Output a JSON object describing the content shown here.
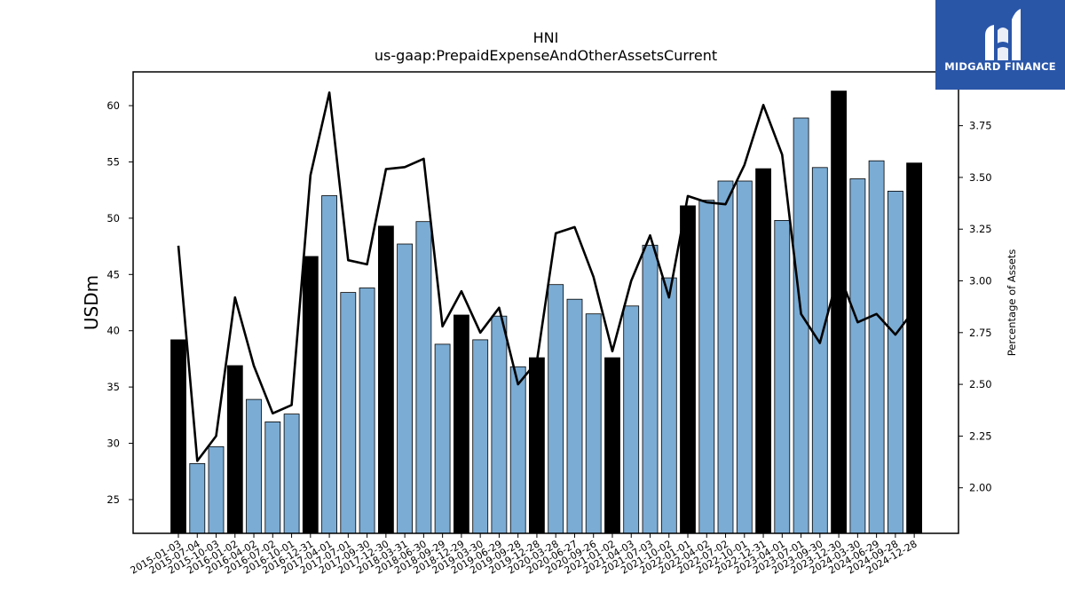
{
  "chart_data": {
    "type": "bar",
    "title": "HNI",
    "subtitle": "us-gaap:PrepaidExpenseAndOtherAssetsCurrent",
    "ylabel": "USDm",
    "y2label": "Percentage of Assets",
    "ylim": [
      22,
      63
    ],
    "y2lim": [
      1.78,
      4.01
    ],
    "yticks": [
      25,
      30,
      35,
      40,
      45,
      50,
      55,
      60
    ],
    "y2ticks": [
      "2.00",
      "2.25",
      "2.50",
      "2.75",
      "3.00",
      "3.25",
      "3.50",
      "3.75"
    ],
    "categories": [
      "2015-01-03",
      "2015-07-04",
      "2015-10-03",
      "2016-01-02",
      "2016-04-02",
      "2016-07-02",
      "2016-10-01",
      "2016-12-31",
      "2017-04-01",
      "2017-07-01",
      "2017-09-30",
      "2017-12-30",
      "2018-03-31",
      "2018-06-30",
      "2018-09-29",
      "2018-12-29",
      "2019-03-30",
      "2019-06-29",
      "2019-09-28",
      "2019-12-28",
      "2020-03-28",
      "2020-06-27",
      "2020-09-26",
      "2021-01-02",
      "2021-04-03",
      "2021-07-03",
      "2021-10-02",
      "2022-01-01",
      "2022-04-02",
      "2022-07-02",
      "2022-10-01",
      "2022-12-31",
      "2023-04-01",
      "2023-07-01",
      "2023-09-30",
      "2023-12-30",
      "2024-03-30",
      "2024-06-29",
      "2024-09-28",
      "2024-12-28"
    ],
    "series": [
      {
        "type": "bar",
        "values": [
          39.2,
          28.2,
          29.7,
          36.9,
          33.9,
          31.9,
          32.6,
          46.6,
          52.0,
          43.4,
          43.8,
          49.3,
          47.7,
          49.7,
          38.8,
          41.4,
          39.2,
          41.3,
          36.8,
          37.6,
          44.1,
          42.8,
          41.5,
          37.6,
          42.2,
          47.6,
          44.7,
          51.1,
          51.6,
          53.3,
          53.3,
          54.4,
          49.8,
          58.9,
          54.5,
          61.3,
          53.5,
          55.1,
          52.4,
          54.9
        ],
        "highlight": [
          true,
          false,
          false,
          true,
          false,
          false,
          false,
          true,
          false,
          false,
          false,
          true,
          false,
          false,
          false,
          true,
          false,
          false,
          false,
          true,
          false,
          false,
          false,
          true,
          false,
          false,
          false,
          true,
          false,
          false,
          false,
          true,
          false,
          false,
          false,
          true,
          false,
          false,
          false,
          true
        ]
      },
      {
        "type": "line",
        "axis": "right",
        "values": [
          3.17,
          2.13,
          2.25,
          2.92,
          2.59,
          2.36,
          2.4,
          3.51,
          3.91,
          3.1,
          3.08,
          3.54,
          3.55,
          3.59,
          2.78,
          2.95,
          2.75,
          2.87,
          2.5,
          2.61,
          3.23,
          3.26,
          3.02,
          2.66,
          3.0,
          3.22,
          2.92,
          3.41,
          3.38,
          3.37,
          3.56,
          3.85,
          3.61,
          2.84,
          2.7,
          3.04,
          2.8,
          2.84,
          2.74,
          2.86
        ]
      }
    ],
    "colors": {
      "bar": "#7bacd4",
      "bar_highlight": "#000000",
      "line": "#000000"
    }
  },
  "logo": {
    "text": "MIDGARD FINANCE",
    "background": "#2a56a8"
  }
}
